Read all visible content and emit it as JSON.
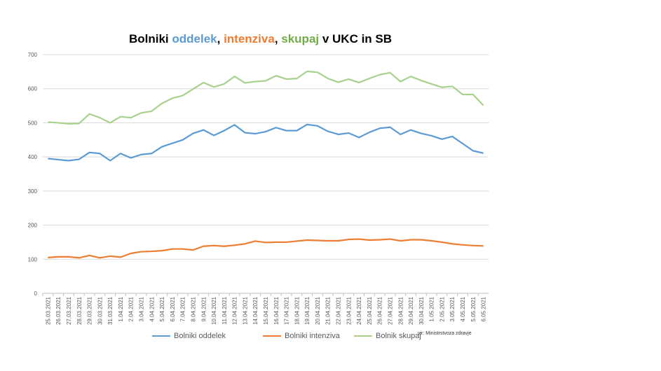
{
  "chart_data": {
    "type": "line",
    "title_parts": [
      {
        "text": "Bolniki ",
        "color": "#000000"
      },
      {
        "text": "oddelek",
        "color": "#5B9BD5"
      },
      {
        "text": ", ",
        "color": "#000000"
      },
      {
        "text": "intenziva",
        "color": "#ED7D31"
      },
      {
        "text": ", ",
        "color": "#000000"
      },
      {
        "text": "skupaj",
        "color": "#70AD47"
      },
      {
        "text": " v UKC in SB",
        "color": "#000000"
      }
    ],
    "ylim": [
      0,
      700
    ],
    "yticks": [
      0,
      100,
      200,
      300,
      400,
      500,
      600,
      700
    ],
    "grid": true,
    "legend_position": "bottom",
    "categories": [
      "25.03.2021",
      "26.03.2021",
      "27.03.2021",
      "28.03.2021",
      "29.03.2021",
      "30.03.2021",
      "31.03.2021",
      "1.04.2021",
      "2.04.2021",
      "3.04.2021",
      "4.04.2021",
      "5.04.2021",
      "6.04.2021",
      "7.04.2021",
      "8.04.2021",
      "9.04.2021",
      "10.04.2021",
      "11.04.2021",
      "12.04.2021",
      "13.04.2021",
      "14.04.2021",
      "15.04.2021",
      "16.04.2021",
      "17.04.2021",
      "18.04.2021",
      "19.04.2021",
      "20.04.2021",
      "21.04.2021",
      "22.04.2021",
      "23.04.2021",
      "24.04.2021",
      "25.04.2021",
      "26.04.2021",
      "27.04.2021",
      "28.04.2021",
      "29.04.2021",
      "30.04.2021",
      "1.05.2021",
      "2.05.2021",
      "3.05.2021",
      "4.05.2021",
      "5.05.2021",
      "6.05.2021"
    ],
    "series": [
      {
        "name": "Bolniki oddelek",
        "color": "#5B9BD5",
        "values": [
          395,
          392,
          389,
          393,
          413,
          410,
          389,
          410,
          397,
          407,
          410,
          430,
          440,
          450,
          469,
          479,
          463,
          477,
          494,
          471,
          468,
          474,
          486,
          477,
          477,
          495,
          491,
          475,
          466,
          470,
          457,
          472,
          484,
          487,
          466,
          479,
          469,
          462,
          452,
          460,
          439,
          418,
          411
        ]
      },
      {
        "name": "Bolniki intenziva",
        "color": "#ED7D31",
        "values": [
          105,
          107,
          107,
          104,
          111,
          104,
          109,
          106,
          117,
          122,
          123,
          125,
          130,
          130,
          127,
          138,
          140,
          138,
          141,
          145,
          153,
          149,
          150,
          150,
          153,
          156,
          155,
          154,
          154,
          158,
          159,
          156,
          157,
          159,
          154,
          157,
          157,
          154,
          150,
          145,
          142,
          140,
          139
        ]
      },
      {
        "name": "Bolnik skupaj",
        "color": "#A9D18E",
        "values": [
          502,
          500,
          497,
          498,
          526,
          515,
          500,
          518,
          515,
          529,
          534,
          557,
          572,
          580,
          599,
          618,
          605,
          614,
          636,
          617,
          621,
          623,
          638,
          628,
          630,
          651,
          648,
          630,
          619,
          628,
          618,
          630,
          641,
          647,
          621,
          636,
          624,
          614,
          604,
          607,
          583,
          583,
          551
        ]
      }
    ],
    "source": "vir: Ministrstvoza zdravje"
  }
}
